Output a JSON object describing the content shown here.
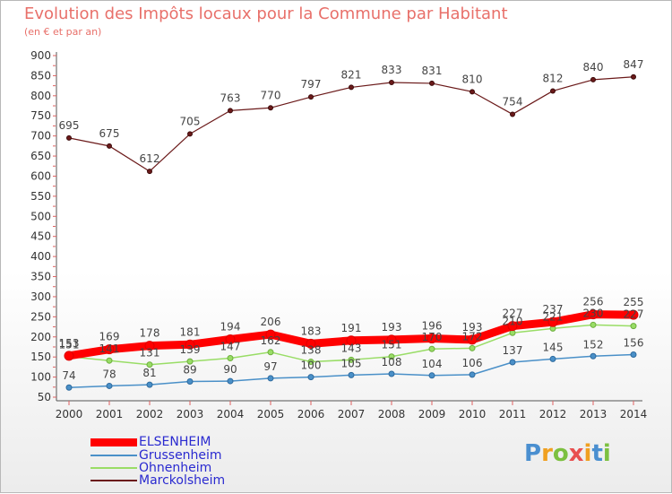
{
  "title": "Evolution des Impôts locaux pour la Commune par Habitant",
  "subtitle": "(en € et par an)",
  "logo": "Proxiti",
  "chart_data": {
    "type": "line",
    "title": "Evolution des Impôts locaux pour la Commune par Habitant",
    "subtitle": "(en € et par an)",
    "x": [
      "2000",
      "2001",
      "2002",
      "2003",
      "2004",
      "2005",
      "2006",
      "2007",
      "2008",
      "2009",
      "2010",
      "2011",
      "2012",
      "2013",
      "2014"
    ],
    "ylim": [
      50,
      900
    ],
    "yticks": [
      50,
      100,
      150,
      200,
      250,
      300,
      350,
      400,
      450,
      500,
      550,
      600,
      650,
      700,
      750,
      800,
      850,
      900
    ],
    "grid": false,
    "legend_position": "bottom-left",
    "series": [
      {
        "name": "ELSENHEIM",
        "color": "#ff0000",
        "values": [
          153,
          169,
          178,
          181,
          194,
          206,
          183,
          191,
          193,
          196,
          193,
          227,
          237,
          256,
          255
        ]
      },
      {
        "name": "Grussenheim",
        "color": "#4a90c8",
        "values": [
          74,
          78,
          81,
          89,
          90,
          97,
          100,
          105,
          108,
          104,
          106,
          137,
          145,
          152,
          156
        ]
      },
      {
        "name": "Ohnenheim",
        "color": "#99dd66",
        "values": [
          151,
          141,
          131,
          139,
          147,
          162,
          138,
          143,
          151,
          170,
          172,
          210,
          221,
          230,
          227
        ]
      },
      {
        "name": "Marckolsheim",
        "color": "#6b1a1a",
        "values": [
          695,
          675,
          612,
          705,
          763,
          770,
          797,
          821,
          833,
          831,
          810,
          754,
          812,
          840,
          847
        ]
      }
    ]
  }
}
